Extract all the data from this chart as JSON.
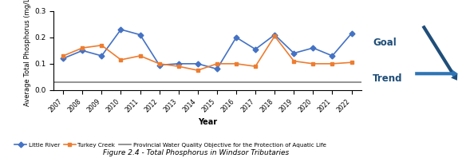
{
  "years": [
    2007,
    2008,
    2009,
    2010,
    2011,
    2012,
    2013,
    2014,
    2015,
    2016,
    2017,
    2018,
    2019,
    2020,
    2021,
    2022
  ],
  "little_river": [
    0.12,
    0.15,
    0.13,
    0.23,
    0.21,
    0.095,
    0.1,
    0.1,
    0.08,
    0.2,
    0.155,
    0.21,
    0.14,
    0.16,
    0.13,
    0.215
  ],
  "turkey_creek": [
    0.13,
    0.16,
    0.17,
    0.115,
    0.13,
    0.1,
    0.09,
    0.075,
    0.1,
    0.1,
    0.09,
    0.205,
    0.11,
    0.1,
    0.1,
    0.105
  ],
  "pwqo": 0.03,
  "little_river_color": "#4472C4",
  "turkey_creek_color": "#ED7D31",
  "pwqo_color": "#808080",
  "goal_color": "#1F4E79",
  "trend_color": "#2E75B6",
  "ylabel": "Average Total Phosphorus (mg/L)",
  "xlabel": "Year",
  "title": "Figure 2.4 - Total Phosphorus in Windsor Tributaries",
  "ylim": [
    0,
    0.3
  ],
  "yticks": [
    0,
    0.1,
    0.2,
    0.3
  ],
  "legend_labels": [
    "Little River",
    "Turkey Creek",
    "Provincial Water Quality Objective for the Protection of Aquatic Life"
  ],
  "goal_label": "Goal",
  "trend_label": "Trend"
}
